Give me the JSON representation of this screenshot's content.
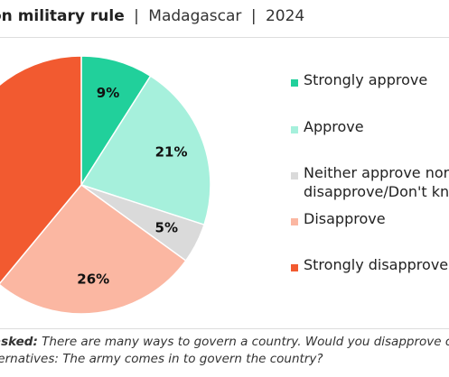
{
  "header": {
    "title_bold": "on military rule",
    "separator": "|",
    "country": "Madagascar",
    "year": "2024"
  },
  "chart_data": {
    "type": "pie",
    "title": "on military rule | Madagascar | 2024",
    "slices": [
      {
        "label": "Strongly approve",
        "value": 9,
        "data_label": "9%",
        "color": "#21d09b"
      },
      {
        "label": "Approve",
        "value": 21,
        "data_label": "21%",
        "color": "#a6f0dc"
      },
      {
        "label": "Neither approve nor disapprove/Don't know",
        "value": 5,
        "data_label": "5%",
        "color": "#dadada"
      },
      {
        "label": "Disapprove",
        "value": 26,
        "data_label": "26%",
        "color": "#fbb7a2"
      },
      {
        "label": "Strongly disapprove",
        "value": 39,
        "data_label": "",
        "color": "#f25a30"
      }
    ],
    "legend_position": "right"
  },
  "legend": {
    "items": [
      {
        "line1": "Strongly approve",
        "line2": ""
      },
      {
        "line1": "Approve",
        "line2": ""
      },
      {
        "line1": "Neither approve nor",
        "line2": "disapprove/Don't know"
      },
      {
        "line1": "Disapprove",
        "line2": ""
      },
      {
        "line1": "Strongly disapprove",
        "line2": ""
      }
    ]
  },
  "footer": {
    "question_label": "asked:",
    "question_line1": "There are many ways to govern a country. Would you disapprove or approve of the following",
    "question_line2": "ternatives: The army comes in to govern the country?"
  }
}
